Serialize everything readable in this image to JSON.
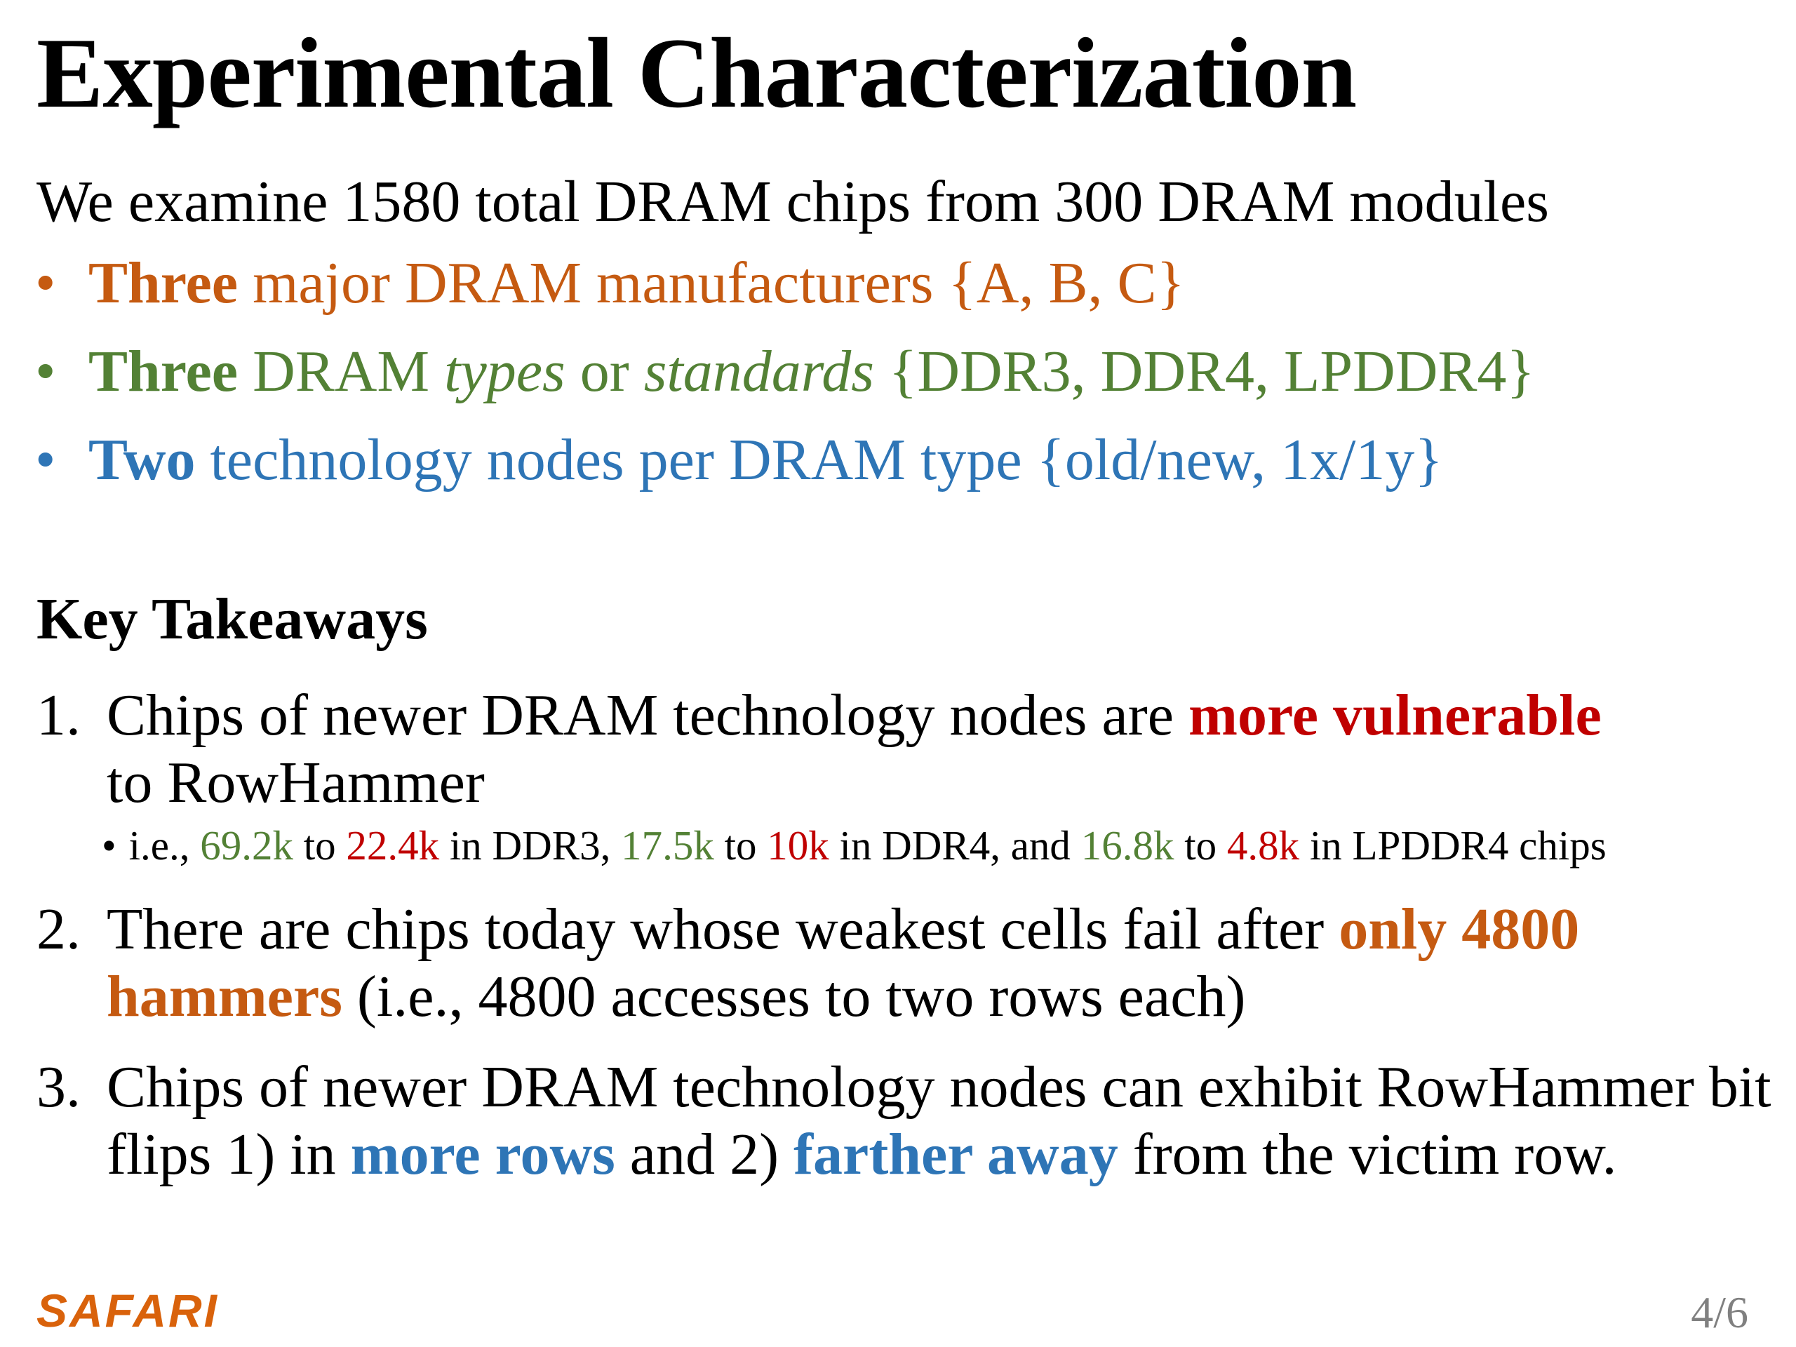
{
  "slide": {
    "title": "Experimental Characterization",
    "intro": "We examine 1580 total DRAM chips from 300 DRAM modules"
  },
  "bullets": [
    {
      "bold": "Three",
      "rest": " major DRAM manufacturers {A, B, C}",
      "color": "#c55a11"
    },
    {
      "bold": "Three",
      "part1": " DRAM ",
      "italic1": "types",
      "part2": " or ",
      "italic2": "standards",
      "part3": " {DDR3, DDR4, LPDDR4}",
      "color": "#538135"
    },
    {
      "bold": "Two",
      "rest": " technology nodes per DRAM type {old/new, 1x/1y}",
      "color": "#2e75b6"
    }
  ],
  "takeaways": {
    "heading": "Key Takeaways",
    "items": [
      {
        "number": "1.",
        "text_before": "Chips of newer DRAM technology nodes are ",
        "highlight": "more vulnerable",
        "text_after": " to RowHammer",
        "highlight_color": "#c00000",
        "sub": {
          "prefix": "i.e., ",
          "ddr3_old": "69.2k",
          "to1": " to ",
          "ddr3_new": "22.4k",
          "mid1": " in DDR3, ",
          "ddr4_old": "17.5k",
          "to2": " to ",
          "ddr4_new": "10k",
          "mid2": " in DDR4, and ",
          "lpddr4_old": "16.8k",
          "to3": " to ",
          "lpddr4_new": "4.8k",
          "suffix": " in LPDDR4 chips"
        }
      },
      {
        "number": "2.",
        "text_before": "There are chips today whose weakest cells fail after ",
        "highlight": "only 4800 hammers",
        "text_after": " (i.e., 4800 accesses to two rows each)",
        "highlight_color": "#c55a11"
      },
      {
        "number": "3.",
        "text_before": "Chips of newer DRAM technology nodes can exhibit RowHammer bit flips 1) in ",
        "highlight1": "more rows",
        "text_mid": " and 2) ",
        "highlight2": "farther away",
        "text_after": " from the victim row.",
        "highlight_color": "#2e75b6"
      }
    ]
  },
  "footer": {
    "logo": "SAFARI",
    "page": "4/6",
    "logo_color": "#d9620b"
  }
}
